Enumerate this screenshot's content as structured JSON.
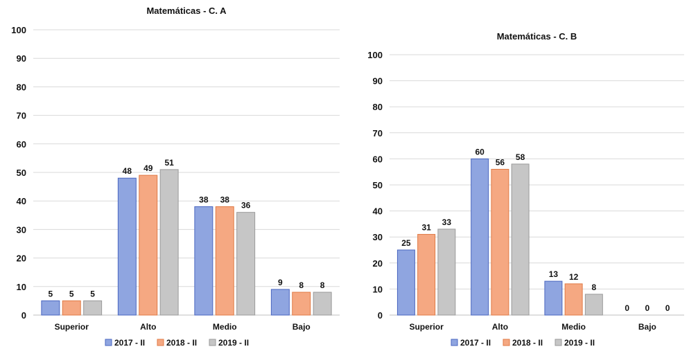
{
  "chart_data": [
    {
      "type": "bar",
      "title": "Matemáticas  - C. A",
      "categories": [
        "Superior",
        "Alto",
        "Medio",
        "Bajo"
      ],
      "series": [
        {
          "name": "2017 - II",
          "values": [
            5,
            48,
            38,
            9
          ]
        },
        {
          "name": "2018 - II",
          "values": [
            5,
            49,
            38,
            8
          ]
        },
        {
          "name": "2019 - II",
          "values": [
            5,
            51,
            36,
            8
          ]
        }
      ],
      "ylim": [
        0,
        100
      ],
      "yticks": [
        0,
        10,
        20,
        30,
        40,
        50,
        60,
        70,
        80,
        90,
        100
      ],
      "grid": true,
      "legend_position": "bottom"
    },
    {
      "type": "bar",
      "title": "Matemáticas - C. B",
      "categories": [
        "Superior",
        "Alto",
        "Medio",
        "Bajo"
      ],
      "series": [
        {
          "name": "2017 - II",
          "values": [
            25,
            60,
            13,
            0
          ]
        },
        {
          "name": "2018 - II",
          "values": [
            31,
            56,
            12,
            0
          ]
        },
        {
          "name": "2019 - II",
          "values": [
            33,
            58,
            8,
            0
          ]
        }
      ],
      "ylim": [
        0,
        100
      ],
      "yticks": [
        0,
        10,
        20,
        30,
        40,
        50,
        60,
        70,
        80,
        90,
        100
      ],
      "grid": true,
      "legend_position": "bottom"
    }
  ],
  "colors": {
    "series_fill": [
      "#8fa5e0",
      "#f5a882",
      "#c6c6c6"
    ],
    "series_stroke": [
      "#4a66c0",
      "#e07a45",
      "#9a9a9a"
    ],
    "grid": "#d9d9d9",
    "axis": "#bfbfbf"
  }
}
